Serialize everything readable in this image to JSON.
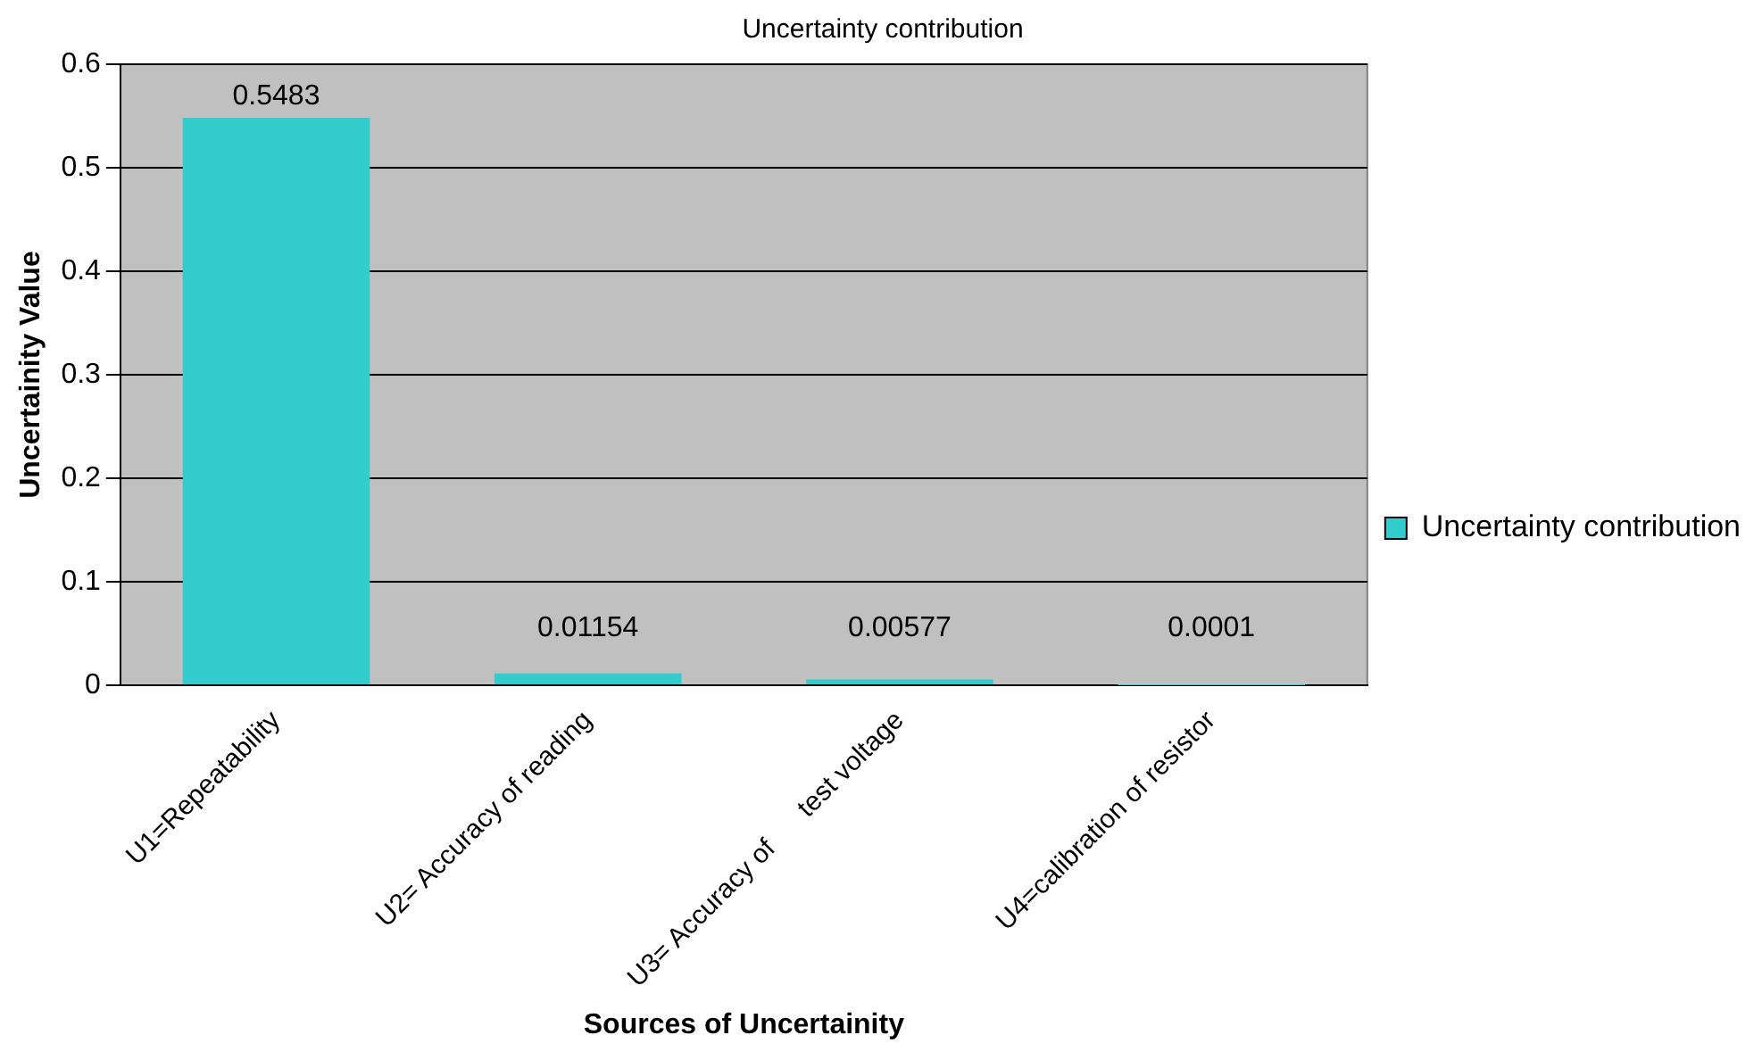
{
  "chart_data": {
    "type": "bar",
    "title": "Uncertainty contribution",
    "xlabel": "Sources of Uncertainity",
    "ylabel": "Uncertainity Value",
    "categories": [
      "U1=Repeatability",
      "U2= Accuracy of reading",
      "U3= Accuracy of      test voltage",
      "U4=calibration of resistor"
    ],
    "series": [
      {
        "name": "Uncertainty contribution",
        "color": "#33cccc",
        "values": [
          0.5483,
          0.01154,
          0.00577,
          0.0001
        ]
      }
    ],
    "ylim": [
      0,
      0.6
    ],
    "yticks": [
      0,
      0.1,
      0.2,
      0.3,
      0.4,
      0.5,
      0.6
    ],
    "grid": "y",
    "legend": "right",
    "data_labels": true
  }
}
